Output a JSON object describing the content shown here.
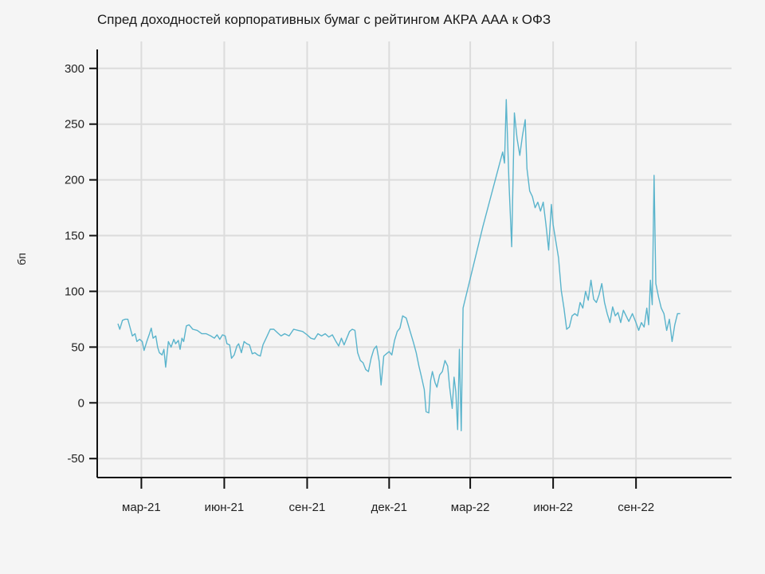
{
  "chart_data": {
    "type": "line",
    "title": "Спред доходностей корпоративных бумаг с рейтингом АКРА ААА к ОФЗ",
    "ylabel": "бп",
    "xlabel": "",
    "ylim": [
      -67,
      317
    ],
    "xlim": [
      "2021-01-11",
      "2022-12-16"
    ],
    "grid": true,
    "yticks": [
      -50,
      0,
      50,
      100,
      150,
      200,
      250,
      300
    ],
    "xticks": [
      {
        "date": "2021-03-01",
        "label": "мар-21"
      },
      {
        "date": "2021-06-01",
        "label": "июн-21"
      },
      {
        "date": "2021-09-01",
        "label": "сен-21"
      },
      {
        "date": "2021-12-01",
        "label": "дек-21"
      },
      {
        "date": "2022-03-01",
        "label": "мар-22"
      },
      {
        "date": "2022-06-01",
        "label": "июн-22"
      },
      {
        "date": "2022-09-01",
        "label": "сен-22"
      }
    ],
    "color": "#5ab4cc",
    "series": [
      {
        "name": "",
        "points": [
          [
            "2021-02-03",
            71
          ],
          [
            "2021-02-05",
            66
          ],
          [
            "2021-02-08",
            74
          ],
          [
            "2021-02-11",
            75
          ],
          [
            "2021-02-14",
            75
          ],
          [
            "2021-02-17",
            66
          ],
          [
            "2021-02-19",
            60
          ],
          [
            "2021-02-22",
            62
          ],
          [
            "2021-02-24",
            55
          ],
          [
            "2021-02-27",
            57
          ],
          [
            "2021-03-02",
            55
          ],
          [
            "2021-03-04",
            47
          ],
          [
            "2021-03-07",
            55
          ],
          [
            "2021-03-10",
            62
          ],
          [
            "2021-03-12",
            67
          ],
          [
            "2021-03-14",
            58
          ],
          [
            "2021-03-17",
            60
          ],
          [
            "2021-03-19",
            50
          ],
          [
            "2021-03-21",
            45
          ],
          [
            "2021-03-24",
            43
          ],
          [
            "2021-03-26",
            48
          ],
          [
            "2021-03-28",
            32
          ],
          [
            "2021-03-31",
            55
          ],
          [
            "2021-04-03",
            50
          ],
          [
            "2021-04-06",
            57
          ],
          [
            "2021-04-08",
            53
          ],
          [
            "2021-04-11",
            56
          ],
          [
            "2021-04-13",
            48
          ],
          [
            "2021-04-15",
            58
          ],
          [
            "2021-04-17",
            55
          ],
          [
            "2021-04-20",
            69
          ],
          [
            "2021-04-23",
            70
          ],
          [
            "2021-04-27",
            66
          ],
          [
            "2021-05-02",
            65
          ],
          [
            "2021-05-07",
            62
          ],
          [
            "2021-05-12",
            62
          ],
          [
            "2021-05-17",
            60
          ],
          [
            "2021-05-21",
            58
          ],
          [
            "2021-05-24",
            61
          ],
          [
            "2021-05-27",
            57
          ],
          [
            "2021-05-30",
            61
          ],
          [
            "2021-06-02",
            60
          ],
          [
            "2021-06-04",
            53
          ],
          [
            "2021-06-07",
            52
          ],
          [
            "2021-06-09",
            40
          ],
          [
            "2021-06-12",
            43
          ],
          [
            "2021-06-15",
            51
          ],
          [
            "2021-06-17",
            53
          ],
          [
            "2021-06-20",
            45
          ],
          [
            "2021-06-23",
            55
          ],
          [
            "2021-06-26",
            53
          ],
          [
            "2021-06-29",
            52
          ],
          [
            "2021-07-02",
            44
          ],
          [
            "2021-07-05",
            45
          ],
          [
            "2021-07-08",
            43
          ],
          [
            "2021-07-11",
            42
          ],
          [
            "2021-07-14",
            52
          ],
          [
            "2021-07-18",
            59
          ],
          [
            "2021-07-22",
            66
          ],
          [
            "2021-07-26",
            66
          ],
          [
            "2021-07-30",
            63
          ],
          [
            "2021-08-03",
            60
          ],
          [
            "2021-08-07",
            62
          ],
          [
            "2021-08-12",
            60
          ],
          [
            "2021-08-17",
            66
          ],
          [
            "2021-08-22",
            65
          ],
          [
            "2021-08-27",
            64
          ],
          [
            "2021-09-01",
            61
          ],
          [
            "2021-09-05",
            58
          ],
          [
            "2021-09-09",
            57
          ],
          [
            "2021-09-13",
            62
          ],
          [
            "2021-09-17",
            60
          ],
          [
            "2021-09-21",
            62
          ],
          [
            "2021-09-25",
            59
          ],
          [
            "2021-09-29",
            61
          ],
          [
            "2021-10-03",
            55
          ],
          [
            "2021-10-06",
            51
          ],
          [
            "2021-10-09",
            58
          ],
          [
            "2021-10-12",
            52
          ],
          [
            "2021-10-15",
            58
          ],
          [
            "2021-10-18",
            64
          ],
          [
            "2021-10-21",
            66
          ],
          [
            "2021-10-24",
            65
          ],
          [
            "2021-10-27",
            45
          ],
          [
            "2021-10-30",
            38
          ],
          [
            "2021-11-02",
            36
          ],
          [
            "2021-11-05",
            30
          ],
          [
            "2021-11-08",
            28
          ],
          [
            "2021-11-11",
            40
          ],
          [
            "2021-11-14",
            48
          ],
          [
            "2021-11-17",
            51
          ],
          [
            "2021-11-20",
            37
          ],
          [
            "2021-11-22",
            16
          ],
          [
            "2021-11-25",
            42
          ],
          [
            "2021-11-28",
            44
          ],
          [
            "2021-12-01",
            46
          ],
          [
            "2021-12-04",
            43
          ],
          [
            "2021-12-07",
            56
          ],
          [
            "2021-12-10",
            64
          ],
          [
            "2021-12-13",
            67
          ],
          [
            "2021-12-16",
            78
          ],
          [
            "2021-12-20",
            76
          ],
          [
            "2021-12-24",
            65
          ],
          [
            "2021-12-28",
            54
          ],
          [
            "2021-12-31",
            45
          ],
          [
            "2022-01-03",
            33
          ],
          [
            "2022-01-06",
            23
          ],
          [
            "2022-01-09",
            12
          ],
          [
            "2022-01-11",
            -8
          ],
          [
            "2022-01-14",
            -9
          ],
          [
            "2022-01-16",
            20
          ],
          [
            "2022-01-18",
            28
          ],
          [
            "2022-01-21",
            18
          ],
          [
            "2022-01-23",
            14
          ],
          [
            "2022-01-26",
            25
          ],
          [
            "2022-01-29",
            28
          ],
          [
            "2022-02-01",
            38
          ],
          [
            "2022-02-04",
            33
          ],
          [
            "2022-02-06",
            15
          ],
          [
            "2022-02-09",
            -5
          ],
          [
            "2022-02-11",
            23
          ],
          [
            "2022-02-13",
            10
          ],
          [
            "2022-02-15",
            -24
          ],
          [
            "2022-02-17",
            48
          ],
          [
            "2022-02-19",
            -25
          ],
          [
            "2022-02-21",
            85
          ],
          [
            "2022-03-15",
            158
          ],
          [
            "2022-04-06",
            225
          ],
          [
            "2022-04-08",
            215
          ],
          [
            "2022-04-10",
            272
          ],
          [
            "2022-04-13",
            198
          ],
          [
            "2022-04-16",
            140
          ],
          [
            "2022-04-19",
            260
          ],
          [
            "2022-04-22",
            237
          ],
          [
            "2022-04-25",
            222
          ],
          [
            "2022-04-28",
            240
          ],
          [
            "2022-05-01",
            254
          ],
          [
            "2022-05-03",
            210
          ],
          [
            "2022-05-06",
            190
          ],
          [
            "2022-05-09",
            185
          ],
          [
            "2022-05-12",
            175
          ],
          [
            "2022-05-15",
            180
          ],
          [
            "2022-05-18",
            172
          ],
          [
            "2022-05-21",
            180
          ],
          [
            "2022-05-24",
            160
          ],
          [
            "2022-05-27",
            137
          ],
          [
            "2022-05-30",
            178
          ],
          [
            "2022-06-01",
            160
          ],
          [
            "2022-06-04",
            145
          ],
          [
            "2022-06-07",
            130
          ],
          [
            "2022-06-10",
            101
          ],
          [
            "2022-06-13",
            85
          ],
          [
            "2022-06-16",
            66
          ],
          [
            "2022-06-19",
            68
          ],
          [
            "2022-06-22",
            78
          ],
          [
            "2022-06-25",
            80
          ],
          [
            "2022-06-28",
            78
          ],
          [
            "2022-07-01",
            90
          ],
          [
            "2022-07-04",
            85
          ],
          [
            "2022-07-07",
            100
          ],
          [
            "2022-07-10",
            92
          ],
          [
            "2022-07-13",
            110
          ],
          [
            "2022-07-16",
            93
          ],
          [
            "2022-07-19",
            90
          ],
          [
            "2022-07-22",
            97
          ],
          [
            "2022-07-25",
            107
          ],
          [
            "2022-07-28",
            90
          ],
          [
            "2022-07-31",
            80
          ],
          [
            "2022-08-03",
            72
          ],
          [
            "2022-08-06",
            86
          ],
          [
            "2022-08-09",
            78
          ],
          [
            "2022-08-12",
            81
          ],
          [
            "2022-08-15",
            72
          ],
          [
            "2022-08-18",
            83
          ],
          [
            "2022-08-21",
            78
          ],
          [
            "2022-08-24",
            73
          ],
          [
            "2022-08-28",
            80
          ],
          [
            "2022-09-01",
            72
          ],
          [
            "2022-09-04",
            65
          ],
          [
            "2022-09-07",
            72
          ],
          [
            "2022-09-10",
            68
          ],
          [
            "2022-09-13",
            85
          ],
          [
            "2022-09-15",
            70
          ],
          [
            "2022-09-17",
            110
          ],
          [
            "2022-09-19",
            88
          ],
          [
            "2022-09-21",
            204
          ],
          [
            "2022-09-23",
            107
          ],
          [
            "2022-09-26",
            95
          ],
          [
            "2022-09-29",
            85
          ],
          [
            "2022-10-02",
            80
          ],
          [
            "2022-10-05",
            65
          ],
          [
            "2022-10-08",
            75
          ],
          [
            "2022-10-11",
            55
          ],
          [
            "2022-10-14",
            70
          ],
          [
            "2022-10-17",
            80
          ],
          [
            "2022-10-20",
            80
          ]
        ]
      }
    ]
  }
}
